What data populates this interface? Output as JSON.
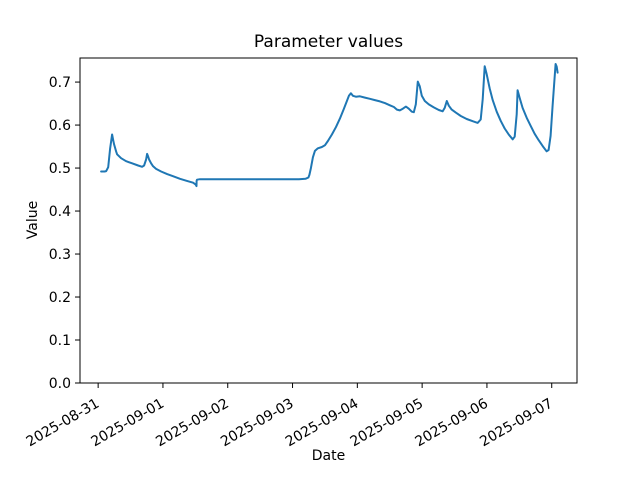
{
  "chart_data": {
    "type": "line",
    "title": "Parameter values",
    "xlabel": "Date",
    "ylabel": "Value",
    "line_color": "#1f77b4",
    "background": "#ffffff",
    "grid": false,
    "legend": null,
    "x_tick_labels": [
      "2025-08-31",
      "2025-09-01",
      "2025-09-02",
      "2025-09-03",
      "2025-09-04",
      "2025-09-05",
      "2025-09-06",
      "2025-09-07"
    ],
    "x_tick_days": [
      0,
      1,
      2,
      3,
      4,
      5,
      6,
      7
    ],
    "y_tick_labels": [
      "0.0",
      "0.1",
      "0.2",
      "0.3",
      "0.4",
      "0.5",
      "0.6",
      "0.7"
    ],
    "y_tick_values": [
      0.0,
      0.1,
      0.2,
      0.3,
      0.4,
      0.5,
      0.6,
      0.7
    ],
    "xlim_days": [
      -0.28,
      7.39
    ],
    "ylim": [
      0,
      0.756
    ],
    "series": [
      {
        "name": "Parameter",
        "x_unit": "days since 2025-08-31 00:00",
        "points": [
          [
            0.046,
            0.492
          ],
          [
            0.1,
            0.492
          ],
          [
            0.125,
            0.493
          ],
          [
            0.155,
            0.502
          ],
          [
            0.185,
            0.545
          ],
          [
            0.216,
            0.578
          ],
          [
            0.231,
            0.566
          ],
          [
            0.247,
            0.555
          ],
          [
            0.278,
            0.538
          ],
          [
            0.293,
            0.532
          ],
          [
            0.355,
            0.523
          ],
          [
            0.432,
            0.516
          ],
          [
            0.524,
            0.511
          ],
          [
            0.617,
            0.506
          ],
          [
            0.679,
            0.503
          ],
          [
            0.71,
            0.506
          ],
          [
            0.74,
            0.52
          ],
          [
            0.755,
            0.533
          ],
          [
            0.771,
            0.527
          ],
          [
            0.786,
            0.52
          ],
          [
            0.817,
            0.511
          ],
          [
            0.848,
            0.504
          ],
          [
            0.894,
            0.498
          ],
          [
            0.971,
            0.492
          ],
          [
            1.064,
            0.486
          ],
          [
            1.156,
            0.481
          ],
          [
            1.264,
            0.475
          ],
          [
            1.372,
            0.47
          ],
          [
            1.465,
            0.466
          ],
          [
            1.503,
            0.462
          ],
          [
            1.515,
            0.459
          ],
          [
            1.518,
            0.458
          ],
          [
            1.52,
            0.47
          ],
          [
            1.526,
            0.473
          ],
          [
            1.572,
            0.474
          ],
          [
            1.8,
            0.474
          ],
          [
            2.0,
            0.474
          ],
          [
            2.2,
            0.474
          ],
          [
            2.4,
            0.474
          ],
          [
            2.6,
            0.474
          ],
          [
            2.8,
            0.474
          ],
          [
            3.0,
            0.474
          ],
          [
            3.1,
            0.474
          ],
          [
            3.2,
            0.475
          ],
          [
            3.245,
            0.478
          ],
          [
            3.26,
            0.484
          ],
          [
            3.284,
            0.5
          ],
          [
            3.315,
            0.525
          ],
          [
            3.345,
            0.54
          ],
          [
            3.392,
            0.546
          ],
          [
            3.453,
            0.549
          ],
          [
            3.5,
            0.553
          ],
          [
            3.546,
            0.563
          ],
          [
            3.608,
            0.578
          ],
          [
            3.669,
            0.595
          ],
          [
            3.731,
            0.615
          ],
          [
            3.793,
            0.638
          ],
          [
            3.839,
            0.656
          ],
          [
            3.87,
            0.668
          ],
          [
            3.901,
            0.674
          ],
          [
            3.931,
            0.668
          ],
          [
            3.978,
            0.666
          ],
          [
            4.039,
            0.667
          ],
          [
            4.116,
            0.664
          ],
          [
            4.194,
            0.661
          ],
          [
            4.271,
            0.658
          ],
          [
            4.348,
            0.655
          ],
          [
            4.425,
            0.651
          ],
          [
            4.502,
            0.646
          ],
          [
            4.564,
            0.642
          ],
          [
            4.61,
            0.636
          ],
          [
            4.656,
            0.634
          ],
          [
            4.702,
            0.638
          ],
          [
            4.749,
            0.643
          ],
          [
            4.795,
            0.638
          ],
          [
            4.841,
            0.631
          ],
          [
            4.872,
            0.63
          ],
          [
            4.903,
            0.648
          ],
          [
            4.933,
            0.701
          ],
          [
            4.964,
            0.69
          ],
          [
            4.995,
            0.668
          ],
          [
            5.041,
            0.656
          ],
          [
            5.103,
            0.648
          ],
          [
            5.18,
            0.641
          ],
          [
            5.257,
            0.635
          ],
          [
            5.318,
            0.632
          ],
          [
            5.349,
            0.64
          ],
          [
            5.38,
            0.656
          ],
          [
            5.411,
            0.645
          ],
          [
            5.457,
            0.636
          ],
          [
            5.519,
            0.629
          ],
          [
            5.596,
            0.621
          ],
          [
            5.688,
            0.614
          ],
          [
            5.781,
            0.609
          ],
          [
            5.858,
            0.605
          ],
          [
            5.904,
            0.613
          ],
          [
            5.935,
            0.66
          ],
          [
            5.966,
            0.737
          ],
          [
            5.997,
            0.718
          ],
          [
            6.043,
            0.685
          ],
          [
            6.089,
            0.658
          ],
          [
            6.151,
            0.631
          ],
          [
            6.212,
            0.61
          ],
          [
            6.274,
            0.592
          ],
          [
            6.336,
            0.578
          ],
          [
            6.397,
            0.567
          ],
          [
            6.428,
            0.573
          ],
          [
            6.459,
            0.625
          ],
          [
            6.474,
            0.681
          ],
          [
            6.505,
            0.663
          ],
          [
            6.551,
            0.64
          ],
          [
            6.613,
            0.617
          ],
          [
            6.675,
            0.598
          ],
          [
            6.736,
            0.58
          ],
          [
            6.798,
            0.565
          ],
          [
            6.86,
            0.551
          ],
          [
            6.921,
            0.539
          ],
          [
            6.952,
            0.542
          ],
          [
            6.983,
            0.575
          ],
          [
            7.014,
            0.645
          ],
          [
            7.045,
            0.71
          ],
          [
            7.06,
            0.742
          ],
          [
            7.076,
            0.736
          ],
          [
            7.091,
            0.722
          ]
        ]
      }
    ]
  }
}
